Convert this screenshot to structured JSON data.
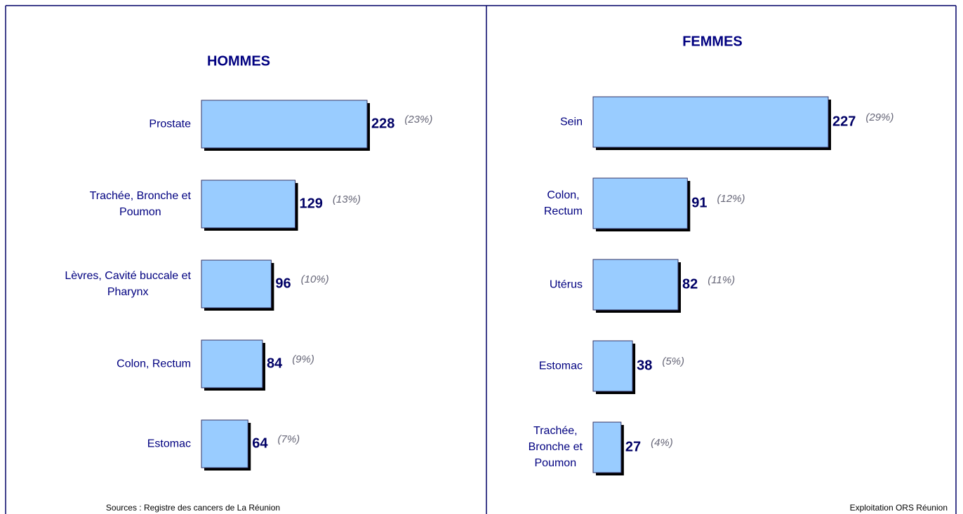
{
  "chart_data": [
    {
      "type": "bar",
      "title": "HOMMES",
      "categories": [
        "Prostate",
        "Trachée, Bronche et\nPoumon",
        "Lèvres, Cavité buccale et\nPharynx",
        "Colon, Rectum",
        "Estomac"
      ],
      "values": [
        228,
        129,
        96,
        84,
        64
      ],
      "share_labels": [
        "(23%)",
        "(13%)",
        "(10%)",
        "(9%)",
        "(7%)"
      ],
      "color": "#99ccff"
    },
    {
      "type": "bar",
      "title": "FEMMES",
      "categories": [
        "Sein",
        "Colon,\nRectum",
        "Utérus",
        "Estomac",
        "Trachée,\nBronche et\nPoumon"
      ],
      "values": [
        227,
        91,
        82,
        38,
        27
      ],
      "share_labels": [
        "(29%)",
        "(12%)",
        "(11%)",
        "(5%)",
        "(4%)"
      ],
      "color": "#99ccff"
    }
  ],
  "sources": "Sources : Registre des cancers de La Réunion",
  "credit": "Exploitation ORS Réunion"
}
